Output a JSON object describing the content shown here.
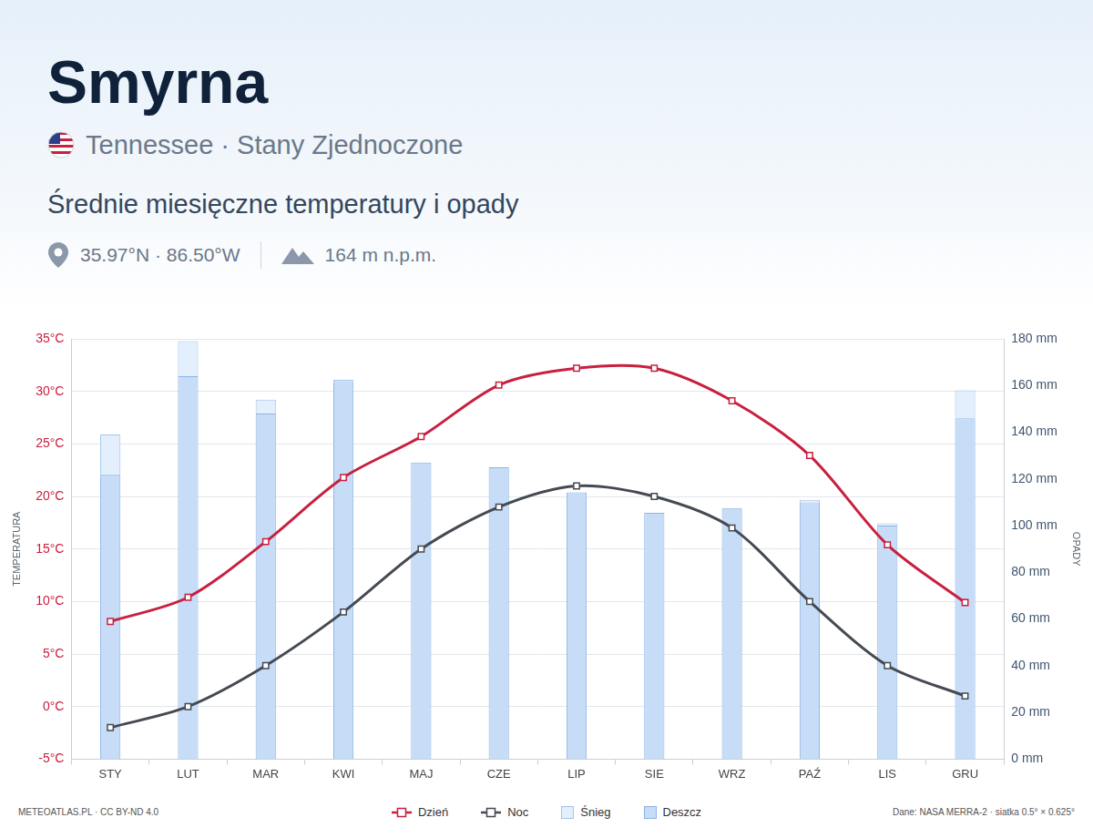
{
  "chart_data": {
    "type": "bar",
    "title": "Smyrna",
    "subtitle": "Tennessee · Stany Zjednoczone",
    "heading": "Średnie miesięczne temperatury i opady",
    "annotations": [
      "35.97°N · 86.50°W",
      "164 m n.p.m.",
      "METEOATLAS.PL · CC BY-ND 4.0",
      "Dane: NASA MERRA-2 · siatka 0.5° × 0.625°"
    ],
    "ylabel": "TEMPERATURA",
    "y2label": "OPADY",
    "categories": [
      "STY",
      "LUT",
      "MAR",
      "KWI",
      "MAJ",
      "CZE",
      "LIP",
      "SIE",
      "WRZ",
      "PAŹ",
      "LIS",
      "GRU"
    ],
    "series": [
      {
        "name": "Dzień",
        "type": "line",
        "axis": "y",
        "color": "#c8203f",
        "marker": "square",
        "values": [
          8.1,
          10.4,
          15.7,
          21.8,
          25.7,
          30.6,
          32.2,
          32.2,
          29.1,
          23.9,
          15.4,
          9.9
        ]
      },
      {
        "name": "Noc",
        "type": "line",
        "axis": "y",
        "color": "#454a52",
        "marker": "square",
        "values": [
          -2,
          0,
          3.9,
          9,
          15,
          19,
          21,
          20,
          17,
          10,
          3.9,
          1
        ]
      },
      {
        "name": "Śnieg",
        "type": "bar",
        "axis": "y2",
        "color": "#e3effc",
        "values": [
          17,
          15,
          6,
          0.8,
          0,
          0,
          0,
          0,
          0,
          1,
          1,
          12
        ]
      },
      {
        "name": "Deszcz",
        "type": "bar",
        "axis": "y2",
        "color": "#c6dcf7",
        "values": [
          122,
          164,
          148,
          161.6,
          127,
          125,
          114.3,
          105.5,
          107.5,
          110,
          100,
          146
        ]
      }
    ],
    "ylim": [
      -5,
      35
    ],
    "yticks": [
      {
        "value": -5,
        "label": "-5°C"
      },
      {
        "value": 0,
        "label": "0°C"
      },
      {
        "value": 5,
        "label": "5°C"
      },
      {
        "value": 10,
        "label": "10°C"
      },
      {
        "value": 15,
        "label": "15°C"
      },
      {
        "value": 20,
        "label": "20°C"
      },
      {
        "value": 25,
        "label": "25°C"
      },
      {
        "value": 30,
        "label": "30°C"
      },
      {
        "value": 35,
        "label": "35°C"
      }
    ],
    "y2lim": [
      0,
      180
    ],
    "y2ticks": [
      {
        "value": 0,
        "label": "0 mm"
      },
      {
        "value": 20,
        "label": "20 mm"
      },
      {
        "value": 40,
        "label": "40 mm"
      },
      {
        "value": 60,
        "label": "60 mm"
      },
      {
        "value": 80,
        "label": "80 mm"
      },
      {
        "value": 100,
        "label": "100 mm"
      },
      {
        "value": 120,
        "label": "120 mm"
      },
      {
        "value": 140,
        "label": "140 mm"
      },
      {
        "value": 160,
        "label": "160 mm"
      },
      {
        "value": 180,
        "label": "180 mm"
      }
    ],
    "stacked": true,
    "grid": true,
    "legend": "bottom"
  }
}
